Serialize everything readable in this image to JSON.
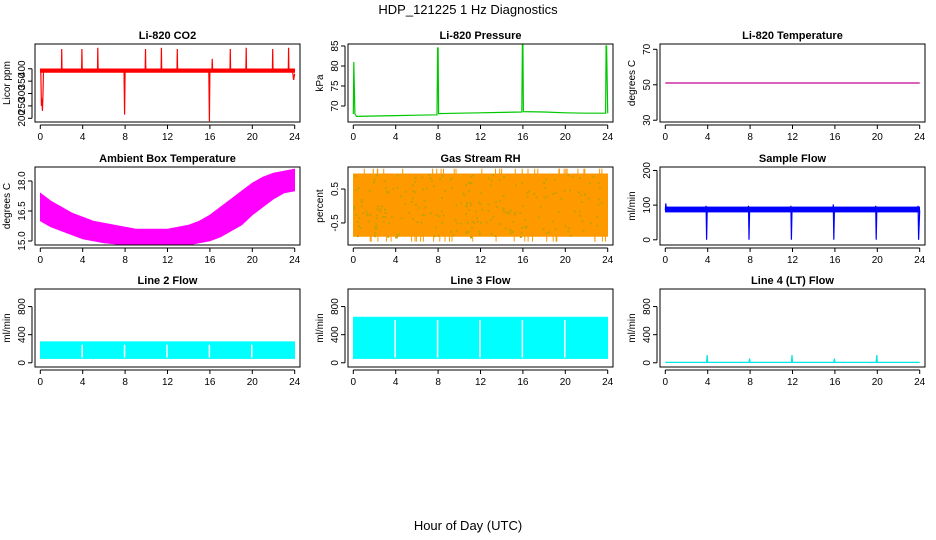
{
  "figure": {
    "title": "HDP_121225  1 Hz Diagnostics",
    "xlabel": "Hour of Day (UTC)"
  },
  "chart_data": [
    {
      "type": "line",
      "title": "Li-820 CO2",
      "ylabel": "Licor ppm",
      "color": "#ff0000",
      "xlim": [
        -0.5,
        24.5
      ],
      "ylim": [
        185,
        500
      ],
      "xticks": [
        0,
        4,
        8,
        12,
        16,
        20,
        24
      ],
      "xtick_labels": [
        "0",
        "4",
        "8",
        "12",
        "16",
        "20",
        "24"
      ],
      "yticks": [
        200,
        250,
        300,
        350,
        400
      ],
      "ytick_labels": [
        "200",
        "250",
        "300",
        "350",
        "400"
      ],
      "band": {
        "x": [
          0,
          24
        ],
        "low": [
          385,
          385
        ],
        "high": [
          400,
          400
        ]
      },
      "series": [
        {
          "x": [
            0.05,
            0.1,
            0.15,
            0.2,
            0.25,
            0.3
          ],
          "y": [
            390,
            250,
            280,
            230,
            300,
            395
          ]
        },
        {
          "x": [
            2,
            2.02,
            2.05
          ],
          "y": [
            395,
            480,
            395
          ]
        },
        {
          "x": [
            3.9,
            3.92,
            3.95
          ],
          "y": [
            395,
            480,
            395
          ]
        },
        {
          "x": [
            5.4,
            5.42,
            5.45
          ],
          "y": [
            395,
            485,
            395
          ]
        },
        {
          "x": [
            7.9,
            7.95,
            8.0
          ],
          "y": [
            395,
            215,
            395
          ]
        },
        {
          "x": [
            9.9,
            9.92,
            9.95
          ],
          "y": [
            395,
            480,
            395
          ]
        },
        {
          "x": [
            11.4,
            11.42,
            11.45
          ],
          "y": [
            395,
            485,
            395
          ]
        },
        {
          "x": [
            12.9,
            12.92,
            12.95
          ],
          "y": [
            395,
            480,
            395
          ]
        },
        {
          "x": [
            15.9,
            15.95,
            16.0
          ],
          "y": [
            395,
            188,
            395
          ]
        },
        {
          "x": [
            16.2,
            16.22,
            16.25
          ],
          "y": [
            395,
            440,
            395
          ]
        },
        {
          "x": [
            17.9,
            17.92,
            17.95
          ],
          "y": [
            395,
            480,
            395
          ]
        },
        {
          "x": [
            19.4,
            19.42,
            19.45
          ],
          "y": [
            395,
            485,
            395
          ]
        },
        {
          "x": [
            21.9,
            21.92,
            21.95
          ],
          "y": [
            395,
            480,
            395
          ]
        },
        {
          "x": [
            23.4,
            23.42,
            23.45
          ],
          "y": [
            395,
            485,
            395
          ]
        },
        {
          "x": [
            23.8,
            23.9,
            24.0
          ],
          "y": [
            390,
            355,
            380
          ]
        }
      ]
    },
    {
      "type": "line",
      "title": "Li-820 Pressure",
      "ylabel": "kPa",
      "color": "#00c800",
      "xlim": [
        -0.5,
        24.5
      ],
      "ylim": [
        66,
        85.5
      ],
      "xticks": [
        0,
        4,
        8,
        12,
        16,
        20,
        24
      ],
      "xtick_labels": [
        "0",
        "4",
        "8",
        "12",
        "16",
        "20",
        "24"
      ],
      "yticks": [
        70,
        75,
        80,
        85
      ],
      "ytick_labels": [
        "70",
        "75",
        "80",
        "85"
      ],
      "series": [
        {
          "x": [
            0,
            0.05,
            0.1,
            0.15,
            0.3,
            2,
            4,
            6,
            7.9,
            7.95,
            8.0,
            8.05,
            10,
            12,
            14,
            15.9,
            15.95,
            16.0,
            16.05,
            18,
            20,
            22,
            23.8,
            23.85,
            23.9,
            24.0
          ],
          "y": [
            68,
            81,
            74,
            68,
            67.4,
            67.5,
            67.6,
            67.7,
            67.8,
            84.5,
            84.5,
            68.1,
            68.2,
            68.3,
            68.4,
            68.5,
            85.5,
            85.5,
            68.6,
            68.5,
            68.3,
            68.2,
            68.2,
            85,
            85,
            68.2
          ]
        }
      ]
    },
    {
      "type": "line",
      "title": "Li-820 Temperature",
      "ylabel": "degrees C",
      "color": "#c80096",
      "xlim": [
        -0.5,
        24.5
      ],
      "ylim": [
        29,
        73
      ],
      "xticks": [
        0,
        4,
        8,
        12,
        16,
        20,
        24
      ],
      "xtick_labels": [
        "0",
        "4",
        "8",
        "12",
        "16",
        "20",
        "24"
      ],
      "yticks": [
        30,
        50,
        70
      ],
      "ytick_labels": [
        "30",
        "50",
        "70"
      ],
      "series": [
        {
          "x": [
            0,
            24
          ],
          "y": [
            51,
            51
          ]
        }
      ]
    },
    {
      "type": "area",
      "title": "Ambient Box Temperature",
      "ylabel": "degrees C",
      "color": "#ff00ff",
      "xlim": [
        -0.5,
        24.5
      ],
      "ylim": [
        14.8,
        18.7
      ],
      "xticks": [
        0,
        4,
        8,
        12,
        16,
        20,
        24
      ],
      "xtick_labels": [
        "0",
        "4",
        "8",
        "12",
        "16",
        "20",
        "24"
      ],
      "yticks": [
        15.0,
        16.5,
        18.0
      ],
      "ytick_labels": [
        "15.0",
        "16.5",
        "18.0"
      ],
      "band": {
        "x": [
          0,
          1,
          2,
          3,
          4,
          5,
          6,
          7,
          8,
          9,
          10,
          11,
          12,
          13,
          14,
          15,
          16,
          17,
          18,
          19,
          20,
          21,
          22,
          23,
          24
        ],
        "low": [
          16.0,
          15.7,
          15.5,
          15.3,
          15.1,
          15.0,
          14.9,
          14.85,
          14.8,
          14.8,
          14.8,
          14.8,
          14.8,
          14.8,
          14.8,
          14.9,
          15.0,
          15.2,
          15.5,
          15.8,
          16.3,
          16.7,
          17.1,
          17.4,
          17.5
        ],
        "high": [
          17.4,
          17.0,
          16.7,
          16.4,
          16.2,
          16.0,
          15.9,
          15.8,
          15.7,
          15.6,
          15.6,
          15.6,
          15.6,
          15.7,
          15.8,
          16.0,
          16.3,
          16.7,
          17.1,
          17.5,
          17.9,
          18.2,
          18.4,
          18.5,
          18.6
        ]
      }
    },
    {
      "type": "area",
      "title": "Gas Stream RH",
      "ylabel": "percent",
      "color": "#ff9900",
      "color2": "#c8a000",
      "xlim": [
        -0.5,
        24.5
      ],
      "ylim": [
        -1.15,
        1.15
      ],
      "xticks": [
        0,
        4,
        8,
        12,
        16,
        20,
        24
      ],
      "xtick_labels": [
        "0",
        "4",
        "8",
        "12",
        "16",
        "20",
        "24"
      ],
      "yticks": [
        -0.5,
        0.5
      ],
      "ytick_labels": [
        "-0.5",
        "0.5"
      ],
      "band": {
        "x": [
          0,
          24
        ],
        "low": [
          -0.9,
          -0.9
        ],
        "high": [
          0.95,
          0.95
        ]
      }
    },
    {
      "type": "line",
      "title": "Sample Flow",
      "ylabel": "ml/min",
      "color": "#0000ff",
      "xlim": [
        -0.5,
        24.5
      ],
      "ylim": [
        -15,
        210
      ],
      "xticks": [
        0,
        4,
        8,
        12,
        16,
        20,
        24
      ],
      "xtick_labels": [
        "0",
        "4",
        "8",
        "12",
        "16",
        "20",
        "24"
      ],
      "yticks": [
        0,
        100,
        200
      ],
      "ytick_labels": [
        "0",
        "100",
        "200"
      ],
      "band": {
        "x": [
          0,
          24
        ],
        "low": [
          80,
          80
        ],
        "high": [
          95,
          95
        ]
      },
      "series": [
        {
          "x": [
            0,
            0.05,
            0.1
          ],
          "y": [
            85,
            105,
            88
          ]
        },
        {
          "x": [
            3.8,
            3.85,
            3.9,
            3.95
          ],
          "y": [
            85,
            98,
            0,
            85
          ]
        },
        {
          "x": [
            7.8,
            7.85,
            7.9,
            7.95
          ],
          "y": [
            85,
            98,
            0,
            85
          ]
        },
        {
          "x": [
            11.8,
            11.85,
            11.9,
            11.95
          ],
          "y": [
            85,
            98,
            0,
            85
          ]
        },
        {
          "x": [
            15.8,
            15.85,
            15.9,
            15.95
          ],
          "y": [
            85,
            102,
            0,
            85
          ]
        },
        {
          "x": [
            19.8,
            19.85,
            19.9,
            19.95
          ],
          "y": [
            85,
            98,
            0,
            85
          ]
        },
        {
          "x": [
            23.8,
            23.85,
            23.9,
            24.0
          ],
          "y": [
            85,
            98,
            0,
            85
          ]
        }
      ]
    },
    {
      "type": "area",
      "title": "Line 2 Flow",
      "ylabel": "ml/min",
      "color": "#00ffff",
      "xlim": [
        -0.5,
        24.5
      ],
      "ylim": [
        -60,
        1050
      ],
      "xticks": [
        0,
        4,
        8,
        12,
        16,
        20,
        24
      ],
      "xtick_labels": [
        "0",
        "4",
        "8",
        "12",
        "16",
        "20",
        "24"
      ],
      "yticks": [
        0,
        400,
        800
      ],
      "ytick_labels": [
        "0",
        "400",
        "800"
      ],
      "band": {
        "x": [
          0,
          24
        ],
        "low": [
          60,
          60
        ],
        "high": [
          300,
          300
        ]
      },
      "gaps": [
        3.95,
        7.95,
        11.95,
        15.95,
        19.95
      ]
    },
    {
      "type": "area",
      "title": "Line 3 Flow",
      "ylabel": "ml/min",
      "color": "#00ffff",
      "xlim": [
        -0.5,
        24.5
      ],
      "ylim": [
        -60,
        1050
      ],
      "xticks": [
        0,
        4,
        8,
        12,
        16,
        20,
        24
      ],
      "xtick_labels": [
        "0",
        "4",
        "8",
        "12",
        "16",
        "20",
        "24"
      ],
      "yticks": [
        0,
        400,
        800
      ],
      "ytick_labels": [
        "0",
        "400",
        "800"
      ],
      "band": {
        "x": [
          0,
          24
        ],
        "low": [
          60,
          60
        ],
        "high": [
          650,
          650
        ]
      },
      "gaps": [
        3.95,
        7.95,
        11.95,
        15.95,
        19.95
      ]
    },
    {
      "type": "line",
      "title": "Line 4 (LT) Flow",
      "ylabel": "ml/min",
      "color": "#00e6e6",
      "xlim": [
        -0.5,
        24.5
      ],
      "ylim": [
        -60,
        1050
      ],
      "xticks": [
        0,
        4,
        8,
        12,
        16,
        20,
        24
      ],
      "xtick_labels": [
        "0",
        "4",
        "8",
        "12",
        "16",
        "20",
        "24"
      ],
      "yticks": [
        0,
        400,
        800
      ],
      "ytick_labels": [
        "0",
        "400",
        "800"
      ],
      "series": [
        {
          "x": [
            0,
            3.9,
            3.95,
            4.0,
            7.9,
            7.95,
            8.0,
            11.9,
            11.95,
            12.0,
            15.9,
            15.95,
            16.0,
            19.9,
            19.95,
            20.0,
            24
          ],
          "y": [
            5,
            5,
            110,
            5,
            5,
            60,
            5,
            5,
            110,
            5,
            5,
            60,
            5,
            5,
            110,
            5,
            5
          ]
        }
      ]
    }
  ]
}
